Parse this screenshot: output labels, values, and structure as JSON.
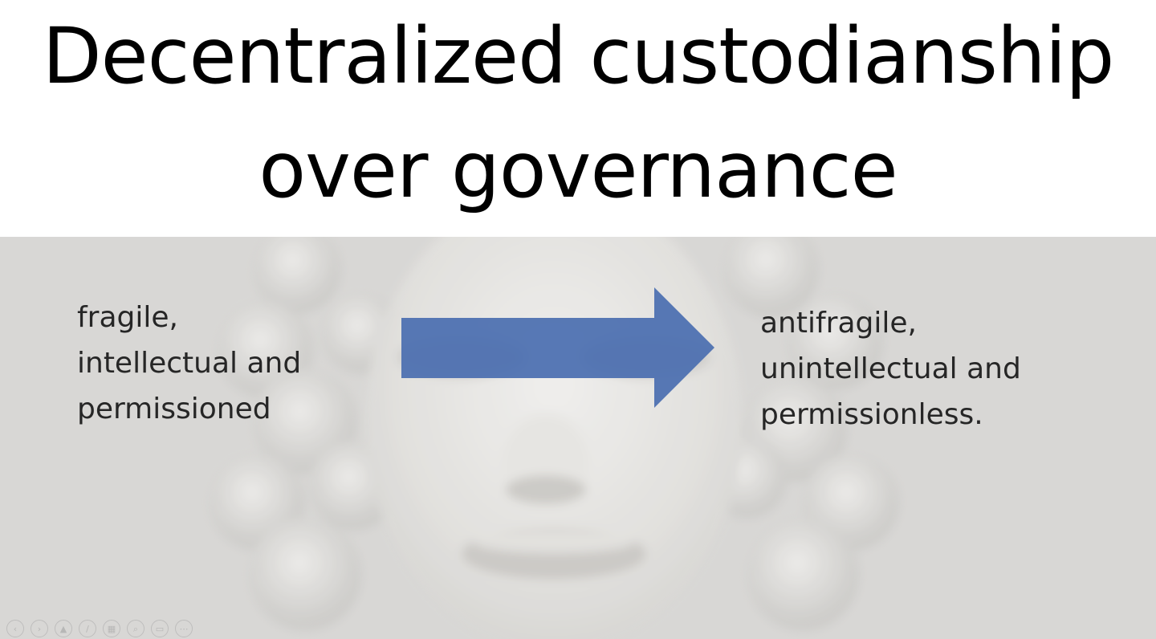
{
  "slide": {
    "title_line_1": "Decentralized custodianship",
    "title_line_2": "over governance",
    "left_lines": [
      "fragile,",
      "intellectual and",
      "permissioned"
    ],
    "right_lines": [
      "antifragile,",
      "unintellectual and",
      "permissionless."
    ]
  },
  "colors": {
    "arrow_fill": "#4a6eb0",
    "photo_bg": "#d8d7d5",
    "text": "#262626"
  },
  "nav": {
    "buttons": [
      {
        "name": "previous-slide-button",
        "icon": "chevron-left-icon",
        "glyph": "‹"
      },
      {
        "name": "next-slide-button",
        "icon": "chevron-right-icon",
        "glyph": "›"
      },
      {
        "name": "pointer-options-button",
        "icon": "pointer-icon",
        "glyph": "▲"
      },
      {
        "name": "pen-tool-button",
        "icon": "pen-icon",
        "glyph": "/"
      },
      {
        "name": "see-all-slides-button",
        "icon": "slides-grid-icon",
        "glyph": "▦"
      },
      {
        "name": "zoom-button",
        "icon": "magnifier-icon",
        "glyph": "⌕"
      },
      {
        "name": "subtitles-button",
        "icon": "screen-icon",
        "glyph": "▭"
      },
      {
        "name": "more-options-button",
        "icon": "more-icon",
        "glyph": "⋯"
      }
    ]
  }
}
